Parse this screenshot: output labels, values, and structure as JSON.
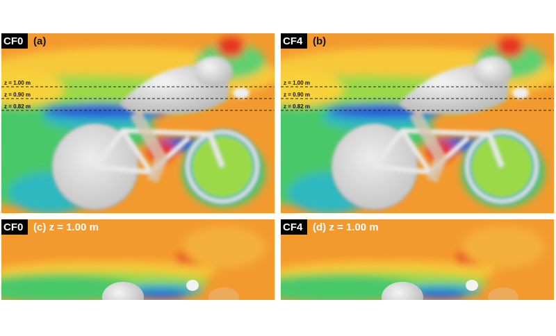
{
  "panels": [
    {
      "tag": "CF0",
      "label": "(a)",
      "lines": [
        "z = 1.00 m",
        "z = 0.90 m",
        "z = 0.82 m"
      ]
    },
    {
      "tag": "CF4",
      "label": "(b)",
      "lines": [
        "z = 1.00 m",
        "z = 0.90 m",
        "z = 0.82 m"
      ]
    },
    {
      "tag": "CF0",
      "label": "(c) z = 1.00 m"
    },
    {
      "tag": "CF4",
      "label": "(d) z = 1.00 m"
    }
  ]
}
